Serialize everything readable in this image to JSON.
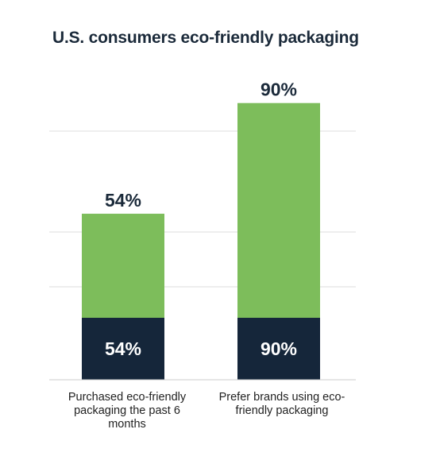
{
  "chart_data": {
    "type": "bar",
    "title": "U.S. consumers eco-friendly packaging",
    "categories": [
      "Purchased eco-friendly packaging the past 6 months",
      "Prefer brands using eco-friendly packaging"
    ],
    "values": [
      54,
      90
    ],
    "value_labels": [
      "54%",
      "90%"
    ],
    "inner_labels": [
      "54%",
      "90%"
    ],
    "ylim": [
      0,
      100
    ],
    "grid": true,
    "legend": "none",
    "colors": {
      "bar_fill": "#7dbd5b",
      "bar_base": "#15263a",
      "gridline": "#dddddd",
      "text_dark": "#1b2a3a"
    }
  }
}
